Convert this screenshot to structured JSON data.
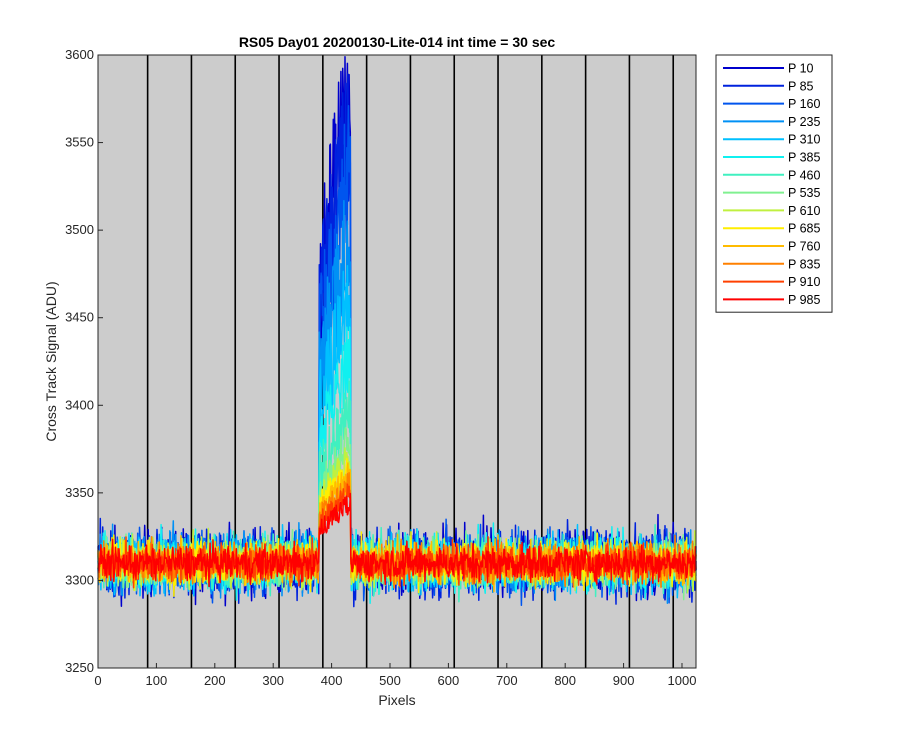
{
  "chart_data": {
    "type": "line",
    "title": "RS05 Day01 20200130-Lite-014 int time = 30 sec",
    "xlabel": "Pixels",
    "ylabel": "Cross Track Signal (ADU)",
    "xlim": [
      0,
      1024
    ],
    "ylim": [
      3250,
      3600
    ],
    "x_ticks": [
      0,
      100,
      200,
      300,
      400,
      500,
      600,
      700,
      800,
      900,
      1000
    ],
    "y_ticks": [
      3250,
      3300,
      3350,
      3400,
      3450,
      3500,
      3550,
      3600
    ],
    "plot_background": "#cccccc",
    "vertical_separators_x": [
      0,
      85,
      160,
      235,
      310,
      385,
      460,
      535,
      610,
      685,
      760,
      835,
      910,
      985
    ],
    "legend_position": "outside-right-top",
    "feature": {
      "x_range": [
        378,
        432
      ],
      "peak_by_series": [
        3585,
        3565,
        3540,
        3505,
        3465,
        3430,
        3400,
        3380,
        3370,
        3365,
        3360,
        3355,
        3350,
        3345
      ]
    },
    "baseline": 3310,
    "noise_range": [
      3280,
      3340
    ],
    "series": [
      {
        "name": "P 10",
        "color": "#0000cc"
      },
      {
        "name": "P 85",
        "color": "#0022dd"
      },
      {
        "name": "P 160",
        "color": "#0055ee"
      },
      {
        "name": "P 235",
        "color": "#0090f5"
      },
      {
        "name": "P 310",
        "color": "#00c0ff"
      },
      {
        "name": "P 385",
        "color": "#10f0f0"
      },
      {
        "name": "P 460",
        "color": "#40f0c0"
      },
      {
        "name": "P 535",
        "color": "#80f090"
      },
      {
        "name": "P 610",
        "color": "#c0f040"
      },
      {
        "name": "P 685",
        "color": "#ffee00"
      },
      {
        "name": "P 760",
        "color": "#ffbb00"
      },
      {
        "name": "P 835",
        "color": "#ff8000"
      },
      {
        "name": "P 910",
        "color": "#ff4000"
      },
      {
        "name": "P 985",
        "color": "#ff0000"
      }
    ]
  }
}
